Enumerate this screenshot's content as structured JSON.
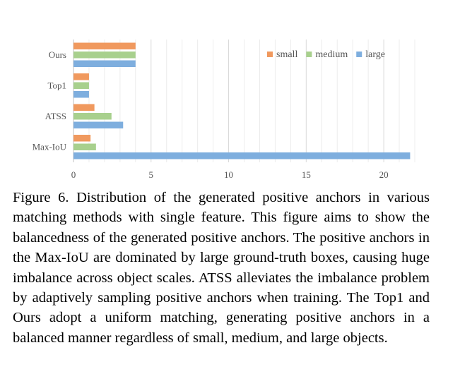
{
  "chart_data": {
    "type": "bar",
    "orientation": "horizontal",
    "categories": [
      "Ours",
      "Top1",
      "ATSS",
      "Max-IoU"
    ],
    "series": [
      {
        "name": "small",
        "color": "#F0995E",
        "values": [
          4,
          1,
          1.35,
          1.1
        ]
      },
      {
        "name": "medium",
        "color": "#A8D08D",
        "values": [
          4,
          1,
          2.45,
          1.45
        ]
      },
      {
        "name": "large",
        "color": "#7EAEDE",
        "values": [
          4,
          1,
          3.2,
          21.7
        ]
      }
    ],
    "xticks": [
      0,
      5,
      10,
      15,
      20
    ],
    "xlim": [
      0,
      22
    ],
    "grid": "vertical",
    "legend_position": "top-right"
  },
  "caption": "Figure 6. Distribution of the generated positive anchors in various matching methods with single feature.  This figure aims to show the balancedness of the generated positive anchors. The positive anchors in the Max-IoU are dominated by large ground-truth boxes, causing huge imbalance across object scales.  ATSS alleviates the imbalance problem by adaptively sampling positive anchors when training. The Top1 and Ours adopt a uniform matching, generating positive anchors in a balanced manner regardless of small, medium, and large objects."
}
